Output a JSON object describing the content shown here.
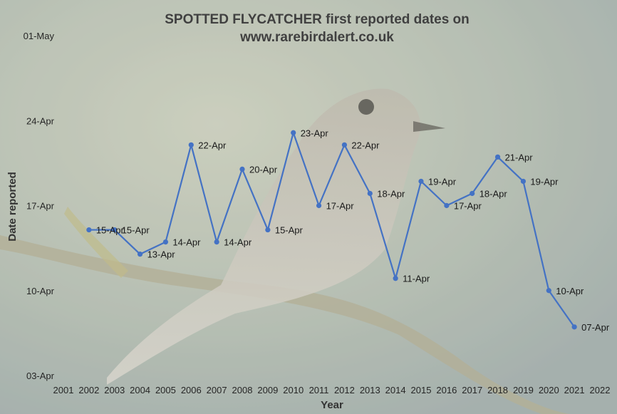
{
  "colors": {
    "series": "#4472c4",
    "title": "#404040",
    "text": "#262626"
  },
  "chart_data": {
    "type": "line",
    "title": [
      "SPOTTED FLYCATCHER first reported dates on",
      "www.rarebirdalert.co.uk"
    ],
    "xlabel": "Year",
    "ylabel": "Date reported",
    "x_ticks": [
      "2001",
      "2002",
      "2003",
      "2004",
      "2005",
      "2006",
      "2007",
      "2008",
      "2009",
      "2010",
      "2011",
      "2012",
      "2013",
      "2014",
      "2015",
      "2016",
      "2017",
      "2018",
      "2019",
      "2020",
      "2021",
      "2022"
    ],
    "xlim": [
      2001,
      2022
    ],
    "y_ticks": [
      {
        "label": "03-Apr",
        "day": 3
      },
      {
        "label": "10-Apr",
        "day": 10
      },
      {
        "label": "17-Apr",
        "day": 17
      },
      {
        "label": "24-Apr",
        "day": 24
      },
      {
        "label": "01-May",
        "day": 31
      }
    ],
    "ylim": [
      3,
      31
    ],
    "grid": false,
    "legend": "none",
    "series": [
      {
        "points": [
          {
            "x": 2002,
            "day": 15,
            "label": "15-Apr"
          },
          {
            "x": 2003,
            "day": 15,
            "label": "15-Apr"
          },
          {
            "x": 2004,
            "day": 13,
            "label": "13-Apr"
          },
          {
            "x": 2005,
            "day": 14,
            "label": "14-Apr"
          },
          {
            "x": 2006,
            "day": 22,
            "label": "22-Apr"
          },
          {
            "x": 2007,
            "day": 14,
            "label": "14-Apr"
          },
          {
            "x": 2008,
            "day": 20,
            "label": "20-Apr"
          },
          {
            "x": 2009,
            "day": 15,
            "label": "15-Apr"
          },
          {
            "x": 2010,
            "day": 23,
            "label": "23-Apr"
          },
          {
            "x": 2011,
            "day": 17,
            "label": "17-Apr"
          },
          {
            "x": 2012,
            "day": 22,
            "label": "22-Apr"
          },
          {
            "x": 2013,
            "day": 18,
            "label": "18-Apr"
          },
          {
            "x": 2014,
            "day": 11,
            "label": "11-Apr"
          },
          {
            "x": 2015,
            "day": 19,
            "label": "19-Apr"
          },
          {
            "x": 2016,
            "day": 17,
            "label": "17-Apr"
          },
          {
            "x": 2017,
            "day": 18,
            "label": "18-Apr"
          },
          {
            "x": 2018,
            "day": 21,
            "label": "21-Apr"
          },
          {
            "x": 2019,
            "day": 19,
            "label": "19-Apr"
          },
          {
            "x": 2020,
            "day": 10,
            "label": "10-Apr"
          },
          {
            "x": 2021,
            "day": 7,
            "label": "07-Apr"
          }
        ]
      }
    ]
  }
}
